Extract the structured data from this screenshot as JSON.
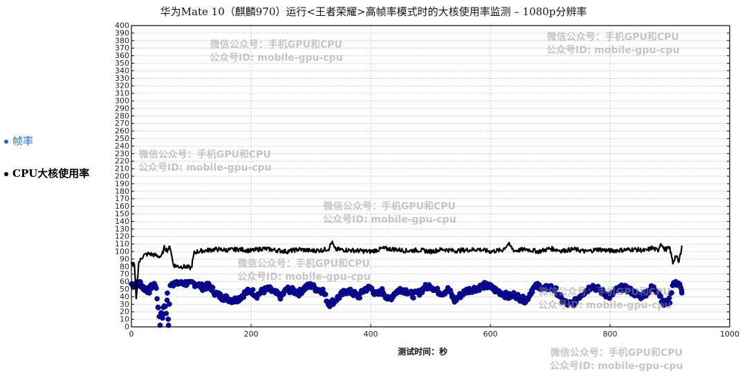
{
  "title": "华为Mate 10（麒麟970）运行<王者荣耀>高帧率模式时的大核使用率监测 – 1080p分辨率",
  "legend": [
    {
      "label": "帧率",
      "color": "#1f6fbf"
    },
    {
      "label": "CPU大核使用率",
      "color": "#000000"
    }
  ],
  "watermark": {
    "line1": "微信公众号：手机GPU和CPU",
    "line2": "公众号ID: mobile-gpu-cpu"
  },
  "chart_data": {
    "type": "line",
    "title": "华为Mate 10（麒麟970）运行<王者荣耀>高帧率模式时的大核使用率监测 – 1080p分辨率",
    "xlabel": "测试时间：秒",
    "ylabel": "",
    "xlim": [
      0,
      1000
    ],
    "ylim": [
      0,
      400
    ],
    "x_ticks": [
      0,
      200,
      400,
      600,
      800,
      1000
    ],
    "y_ticks": [
      0,
      10,
      20,
      30,
      40,
      50,
      60,
      70,
      80,
      90,
      100,
      110,
      120,
      130,
      140,
      150,
      160,
      170,
      180,
      190,
      200,
      210,
      220,
      230,
      240,
      250,
      260,
      270,
      280,
      290,
      300,
      310,
      320,
      330,
      340,
      350,
      360,
      370,
      380,
      390,
      400
    ],
    "grid": true,
    "legend_position": "left-outside",
    "series": [
      {
        "name": "CPU大核使用率",
        "style": "line",
        "color": "#000000",
        "x": [
          0,
          5,
          8,
          12,
          20,
          30,
          40,
          50,
          55,
          60,
          65,
          70,
          80,
          90,
          100,
          105,
          110,
          120,
          140,
          160,
          180,
          200,
          220,
          240,
          260,
          280,
          300,
          320,
          330,
          335,
          340,
          360,
          380,
          400,
          420,
          440,
          460,
          480,
          500,
          520,
          540,
          560,
          580,
          600,
          620,
          630,
          640,
          660,
          680,
          700,
          720,
          740,
          760,
          780,
          800,
          820,
          840,
          860,
          870,
          880,
          885,
          890,
          900,
          905,
          910,
          915,
          920
        ],
        "values": [
          85,
          82,
          35,
          85,
          95,
          97,
          95,
          93,
          105,
          102,
          106,
          82,
          80,
          80,
          78,
          98,
          100,
          101,
          103,
          102,
          103,
          101,
          104,
          102,
          100,
          103,
          101,
          102,
          104,
          113,
          103,
          102,
          101,
          100,
          104,
          103,
          101,
          102,
          100,
          103,
          101,
          102,
          103,
          100,
          102,
          110,
          101,
          103,
          100,
          104,
          101,
          103,
          100,
          103,
          101,
          102,
          103,
          101,
          105,
          101,
          112,
          103,
          104,
          85,
          95,
          85,
          108
        ]
      },
      {
        "name": "帧率",
        "style": "scatter",
        "color": "#0a0a9c",
        "x": [
          0,
          5,
          10,
          15,
          20,
          25,
          30,
          35,
          40,
          45,
          48,
          50,
          52,
          55,
          58,
          60,
          62,
          65,
          70,
          80,
          90,
          100,
          110,
          120,
          130,
          140,
          150,
          160,
          170,
          180,
          190,
          200,
          210,
          220,
          230,
          240,
          250,
          260,
          270,
          280,
          290,
          300,
          310,
          320,
          330,
          340,
          350,
          360,
          370,
          380,
          390,
          400,
          410,
          420,
          430,
          440,
          450,
          460,
          470,
          480,
          490,
          500,
          510,
          520,
          530,
          540,
          550,
          560,
          570,
          580,
          590,
          600,
          610,
          620,
          630,
          640,
          650,
          660,
          670,
          680,
          690,
          700,
          710,
          720,
          730,
          740,
          750,
          760,
          770,
          780,
          790,
          800,
          810,
          820,
          830,
          840,
          850,
          860,
          870,
          880,
          890,
          900,
          905,
          910,
          915,
          920
        ],
        "values": [
          57,
          55,
          57,
          58,
          52,
          50,
          48,
          55,
          57,
          25,
          5,
          20,
          15,
          30,
          18,
          44,
          0,
          58,
          58,
          58,
          58,
          58,
          57,
          52,
          55,
          45,
          40,
          38,
          35,
          38,
          45,
          48,
          42,
          48,
          50,
          45,
          40,
          50,
          48,
          45,
          52,
          55,
          50,
          48,
          30,
          35,
          42,
          48,
          45,
          40,
          50,
          52,
          42,
          48,
          35,
          45,
          50,
          48,
          42,
          45,
          52,
          55,
          48,
          45,
          50,
          35,
          42,
          48,
          50,
          52,
          55,
          53,
          48,
          45,
          40,
          43,
          38,
          35,
          50,
          55,
          50,
          53,
          48,
          35,
          30,
          32,
          42,
          48,
          55,
          50,
          45,
          40,
          48,
          52,
          50,
          45,
          40,
          45,
          52,
          48,
          30,
          35,
          58,
          58,
          58,
          45
        ]
      }
    ]
  }
}
